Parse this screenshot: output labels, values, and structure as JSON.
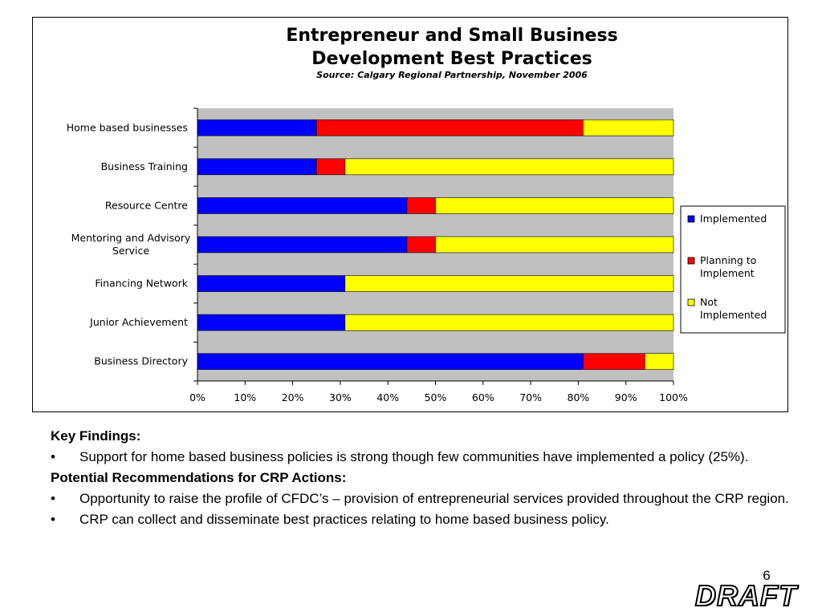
{
  "chart_data": {
    "type": "bar",
    "orientation": "horizontal",
    "stacked": "percent",
    "title_line1": "Entrepreneur and Small Business",
    "title_line2": "Development Best Practices",
    "subtitle": "Source: Calgary Regional Partnership, November 2006",
    "xlabel": "",
    "ylabel": "",
    "xlim": [
      0,
      100
    ],
    "grid": false,
    "legend_placement": "right",
    "categories": [
      [
        "Home based businesses"
      ],
      [
        "Business Training"
      ],
      [
        "Resource Centre"
      ],
      [
        "Mentoring and Advisory",
        "Service"
      ],
      [
        "Financing Network"
      ],
      [
        "Junior Achievement"
      ],
      [
        "Business Directory"
      ]
    ],
    "x_ticks": [
      "0%",
      "10%",
      "20%",
      "30%",
      "40%",
      "50%",
      "60%",
      "70%",
      "80%",
      "90%",
      "100%"
    ],
    "x_tick_values": [
      0,
      10,
      20,
      30,
      40,
      50,
      60,
      70,
      80,
      90,
      100
    ],
    "series": [
      {
        "name": [
          "Implemented"
        ],
        "color": "#0000ff",
        "values": [
          25,
          25,
          44,
          44,
          31,
          31,
          81
        ]
      },
      {
        "name": [
          "Planning to",
          "Implement"
        ],
        "color": "#ff0000",
        "values": [
          56,
          6,
          6,
          6,
          0,
          0,
          13
        ]
      },
      {
        "name": [
          "Not",
          "Implemented"
        ],
        "color": "#ffff00",
        "values": [
          19,
          69,
          50,
          50,
          69,
          69,
          6
        ]
      }
    ],
    "plot_background": "#c0c0c0"
  },
  "notes": {
    "key_findings_heading": "Key Findings:",
    "key_findings": [
      "Support for home based business policies is strong though few communities have implemented a policy (25%)."
    ],
    "recommendations_heading": "Potential Recommendations for CRP Actions:",
    "recommendations": [
      "Opportunity to raise the profile of CFDC’s – provision of entrepreneurial services provided throughout the CRP region.",
      "CRP can collect and disseminate best practices relating to home based business policy."
    ],
    "bullet_char": "•"
  },
  "page_number": "6",
  "draft_stamp": "DRAFT"
}
